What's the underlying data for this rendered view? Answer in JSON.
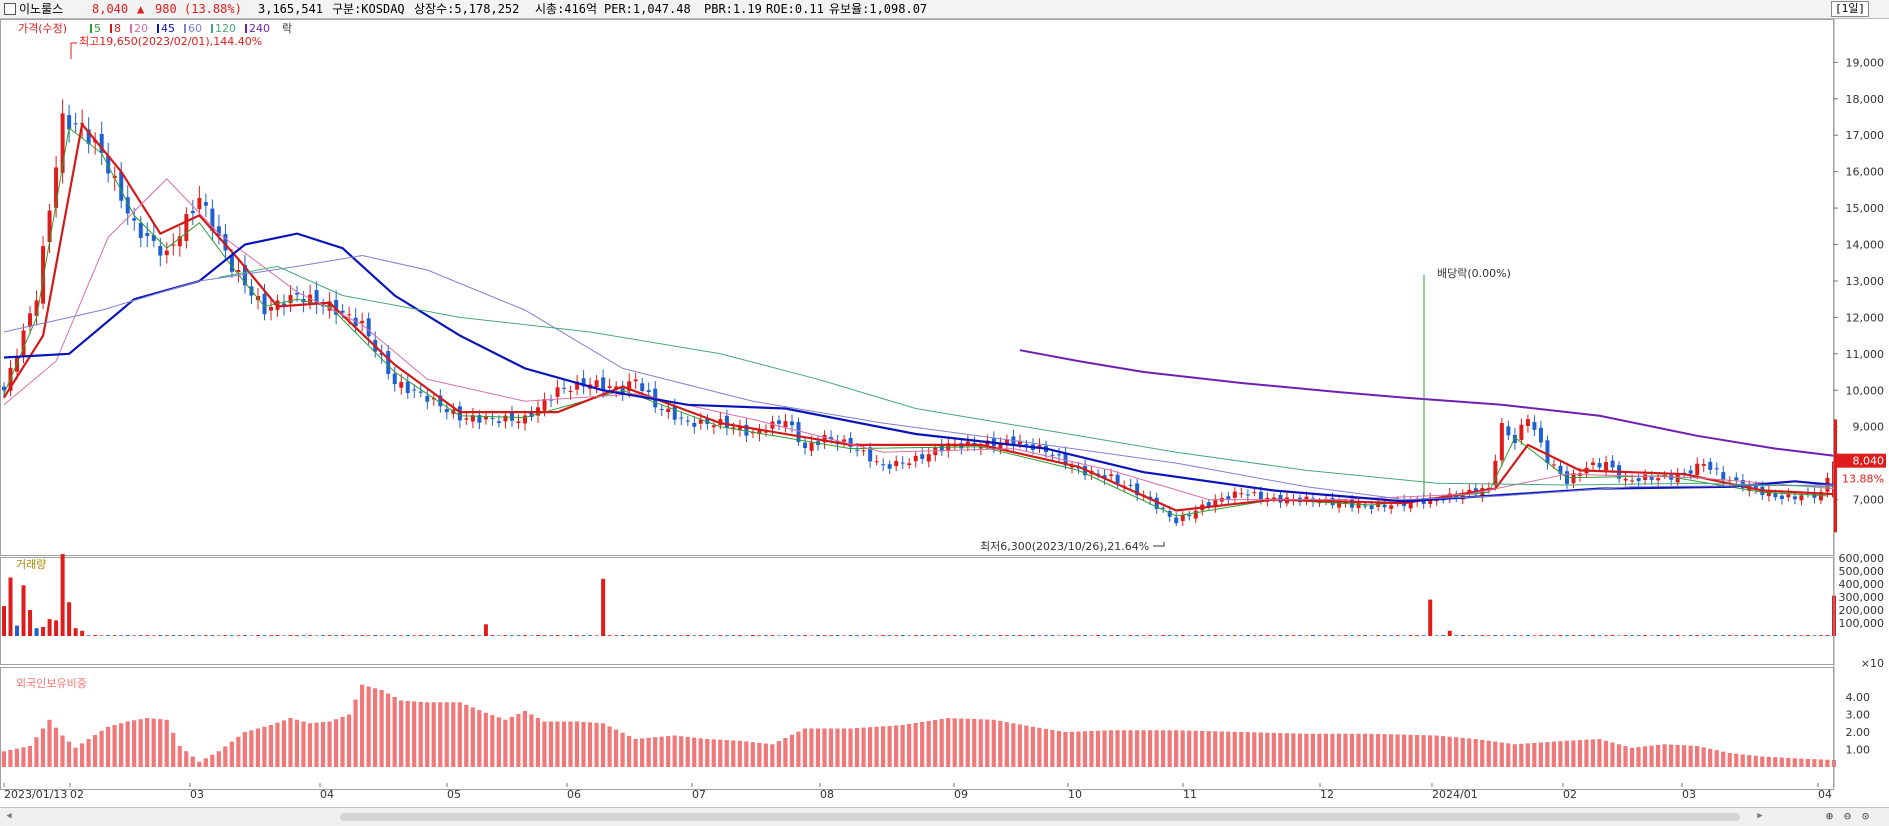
{
  "header": {
    "name": "이노룰스",
    "price": "8,040",
    "arrow": "▲",
    "change": "980",
    "change_pct": "(13.88%)",
    "volume": "3,165,541",
    "market": "구분:KOSDAQ",
    "shares": "상장수:5,178,252",
    "mktcap": "시총:416억",
    "per": "PER:1,047.48",
    "pbr": "PBR:1.19",
    "roe": "ROE:0.11",
    "retention": "유보율:1,098.07",
    "period": "[1일]"
  },
  "colors": {
    "up": "#e01b1b",
    "down": "#1f5fd1",
    "ma5": "#2e9e2e",
    "ma8": "#d11a1a",
    "ma20": "#d870a8",
    "ma45": "#0a14b8",
    "ma60": "#8080d0",
    "ma120": "#48a878",
    "ma240": "#7020b0",
    "foreign": "#f07878"
  },
  "legend": {
    "price_label": "가격(수정)",
    "ma_labels": [
      "5",
      "8",
      "20",
      "45",
      "60",
      "120",
      "240"
    ],
    "ex_label": "락",
    "volume_label": "거래량",
    "foreign_label": "외국인보유비중"
  },
  "chart_data": [
    {
      "type": "candlestick",
      "title": "가격(수정)",
      "ylim": [
        6100,
        20000
      ],
      "y_ticks": [
        "7,000",
        "8,000",
        "9,000",
        "10,000",
        "11,000",
        "12,000",
        "13,000",
        "14,000",
        "15,000",
        "16,000",
        "17,000",
        "18,000",
        "19,000"
      ],
      "x_ticks": [
        "2023/01/13",
        "02",
        "03",
        "04",
        "05",
        "06",
        "07",
        "08",
        "09",
        "10",
        "11",
        "12",
        "2024/01",
        "02",
        "03",
        "04"
      ],
      "last_price": "8,040",
      "last_change_pct": "13.88%",
      "annotations": {
        "high": "최고19,650(2023/02/01),144.40%",
        "low": "최저6,300(2023/10/26),21.64%",
        "ex_dividend": "배당락(0.00%)"
      },
      "price_path": [
        [
          0,
          10000
        ],
        [
          5,
          12600
        ],
        [
          9,
          17400
        ],
        [
          12,
          17200
        ],
        [
          15,
          16500
        ],
        [
          20,
          14500
        ],
        [
          25,
          13700
        ],
        [
          30,
          15300
        ],
        [
          35,
          13400
        ],
        [
          40,
          12200
        ],
        [
          45,
          12600
        ],
        [
          50,
          12300
        ],
        [
          55,
          11800
        ],
        [
          60,
          10200
        ],
        [
          65,
          9800
        ],
        [
          70,
          9250
        ],
        [
          75,
          9200
        ],
        [
          80,
          9200
        ],
        [
          85,
          10000
        ],
        [
          90,
          10200
        ],
        [
          95,
          10000
        ],
        [
          97,
          10300
        ],
        [
          100,
          9600
        ],
        [
          105,
          9100
        ],
        [
          110,
          9100
        ],
        [
          115,
          8800
        ],
        [
          120,
          9200
        ],
        [
          123,
          8400
        ],
        [
          126,
          8700
        ],
        [
          130,
          8500
        ],
        [
          135,
          7900
        ],
        [
          140,
          8100
        ],
        [
          145,
          8500
        ],
        [
          150,
          8500
        ],
        [
          155,
          8600
        ],
        [
          160,
          8350
        ],
        [
          165,
          7800
        ],
        [
          170,
          7600
        ],
        [
          175,
          7100
        ],
        [
          180,
          6400
        ],
        [
          185,
          6900
        ],
        [
          190,
          7200
        ],
        [
          195,
          7000
        ],
        [
          200,
          7000
        ],
        [
          205,
          6900
        ],
        [
          210,
          6800
        ],
        [
          215,
          6900
        ],
        [
          220,
          7000
        ],
        [
          225,
          7200
        ],
        [
          228,
          7300
        ],
        [
          230,
          9000
        ],
        [
          232,
          8600
        ],
        [
          234,
          9300
        ],
        [
          237,
          8100
        ],
        [
          240,
          7500
        ],
        [
          243,
          7900
        ],
        [
          246,
          8000
        ],
        [
          249,
          7500
        ],
        [
          252,
          7600
        ],
        [
          255,
          7600
        ],
        [
          258,
          7700
        ],
        [
          261,
          8000
        ],
        [
          264,
          7600
        ],
        [
          267,
          7400
        ],
        [
          270,
          7200
        ],
        [
          273,
          7050
        ],
        [
          276,
          7100
        ],
        [
          279,
          7150
        ],
        [
          281,
          8040
        ]
      ],
      "ma_paths": {
        "ma5": [
          [
            0,
            9900
          ],
          [
            5,
            12000
          ],
          [
            10,
            17200
          ],
          [
            15,
            16500
          ],
          [
            20,
            14800
          ],
          [
            25,
            13900
          ],
          [
            30,
            14600
          ],
          [
            35,
            13400
          ],
          [
            40,
            12300
          ],
          [
            45,
            12500
          ],
          [
            50,
            12300
          ],
          [
            60,
            10500
          ],
          [
            70,
            9300
          ],
          [
            80,
            9250
          ],
          [
            95,
            10000
          ],
          [
            110,
            9000
          ],
          [
            130,
            8400
          ],
          [
            150,
            8450
          ],
          [
            165,
            7800
          ],
          [
            180,
            6550
          ],
          [
            195,
            7000
          ],
          [
            210,
            6850
          ],
          [
            228,
            7200
          ],
          [
            232,
            8700
          ],
          [
            240,
            7600
          ],
          [
            255,
            7650
          ],
          [
            270,
            7200
          ],
          [
            280,
            7100
          ]
        ],
        "ma8": [
          [
            0,
            9800
          ],
          [
            6,
            11500
          ],
          [
            12,
            17300
          ],
          [
            18,
            16000
          ],
          [
            24,
            14300
          ],
          [
            30,
            14800
          ],
          [
            36,
            13600
          ],
          [
            42,
            12300
          ],
          [
            50,
            12400
          ],
          [
            60,
            10700
          ],
          [
            70,
            9400
          ],
          [
            85,
            9400
          ],
          [
            95,
            10100
          ],
          [
            110,
            9100
          ],
          [
            130,
            8500
          ],
          [
            150,
            8500
          ],
          [
            165,
            7900
          ],
          [
            180,
            6700
          ],
          [
            195,
            7000
          ],
          [
            215,
            6900
          ],
          [
            229,
            7300
          ],
          [
            234,
            8500
          ],
          [
            242,
            7800
          ],
          [
            258,
            7700
          ],
          [
            270,
            7250
          ],
          [
            281,
            7150
          ]
        ],
        "ma20": [
          [
            0,
            9600
          ],
          [
            8,
            10800
          ],
          [
            16,
            14200
          ],
          [
            25,
            15800
          ],
          [
            33,
            14300
          ],
          [
            45,
            12700
          ],
          [
            55,
            11800
          ],
          [
            65,
            10300
          ],
          [
            80,
            9700
          ],
          [
            97,
            9900
          ],
          [
            115,
            9200
          ],
          [
            135,
            8300
          ],
          [
            155,
            8400
          ],
          [
            170,
            7800
          ],
          [
            185,
            7000
          ],
          [
            205,
            7000
          ],
          [
            225,
            7150
          ],
          [
            240,
            7700
          ],
          [
            260,
            7600
          ],
          [
            281,
            7300
          ]
        ],
        "ma45": [
          [
            0,
            10900
          ],
          [
            10,
            11000
          ],
          [
            20,
            12500
          ],
          [
            30,
            13000
          ],
          [
            37,
            14000
          ],
          [
            45,
            14300
          ],
          [
            52,
            13900
          ],
          [
            60,
            12600
          ],
          [
            70,
            11500
          ],
          [
            80,
            10600
          ],
          [
            92,
            10000
          ],
          [
            105,
            9600
          ],
          [
            120,
            9500
          ],
          [
            140,
            8800
          ],
          [
            160,
            8400
          ],
          [
            175,
            7750
          ],
          [
            195,
            7250
          ],
          [
            215,
            6950
          ],
          [
            228,
            7100
          ],
          [
            245,
            7300
          ],
          [
            265,
            7350
          ],
          [
            275,
            7500
          ],
          [
            281,
            7400
          ]
        ],
        "ma60": [
          [
            0,
            11600
          ],
          [
            15,
            12200
          ],
          [
            30,
            13000
          ],
          [
            45,
            13400
          ],
          [
            55,
            13700
          ],
          [
            65,
            13300
          ],
          [
            80,
            12200
          ],
          [
            95,
            10600
          ],
          [
            115,
            9700
          ],
          [
            135,
            9100
          ],
          [
            160,
            8500
          ],
          [
            180,
            8000
          ],
          [
            200,
            7350
          ],
          [
            215,
            7000
          ],
          [
            230,
            7100
          ],
          [
            250,
            7350
          ],
          [
            281,
            7400
          ]
        ],
        "ma120": [
          [
            33,
            13100
          ],
          [
            42,
            13400
          ],
          [
            52,
            12600
          ],
          [
            70,
            12000
          ],
          [
            90,
            11600
          ],
          [
            110,
            11000
          ],
          [
            125,
            10300
          ],
          [
            140,
            9500
          ],
          [
            160,
            8900
          ],
          [
            180,
            8300
          ],
          [
            200,
            7800
          ],
          [
            220,
            7450
          ],
          [
            240,
            7400
          ],
          [
            260,
            7450
          ],
          [
            281,
            7350
          ]
        ],
        "ma240": [
          [
            156,
            11100
          ],
          [
            165,
            10800
          ],
          [
            175,
            10500
          ],
          [
            190,
            10200
          ],
          [
            205,
            9950
          ],
          [
            215,
            9800
          ],
          [
            230,
            9600
          ],
          [
            245,
            9300
          ],
          [
            260,
            8750
          ],
          [
            272,
            8400
          ],
          [
            281,
            8200
          ]
        ]
      }
    },
    {
      "type": "bar",
      "title": "거래량",
      "ylim": [
        0,
        700
      ],
      "y_ticks": [
        "100,000",
        "200,000",
        "300,000",
        "400,000",
        "500,000",
        "600,000"
      ],
      "unit": "×10",
      "spikes": [
        [
          0,
          230
        ],
        [
          1,
          450
        ],
        [
          2,
          80
        ],
        [
          3,
          390
        ],
        [
          4,
          200
        ],
        [
          5,
          60
        ],
        [
          6,
          70
        ],
        [
          7,
          130
        ],
        [
          8,
          120
        ],
        [
          9,
          630
        ],
        [
          10,
          260
        ],
        [
          11,
          60
        ],
        [
          12,
          40
        ],
        [
          74,
          90
        ],
        [
          92,
          440
        ],
        [
          219,
          280
        ],
        [
          222,
          40
        ],
        [
          281,
          310
        ]
      ]
    },
    {
      "type": "bar",
      "title": "외국인보유비중",
      "ylim": [
        0,
        5
      ],
      "y_ticks": [
        "1.00",
        "2.00",
        "3.00",
        "4.00"
      ],
      "path": [
        [
          0,
          0.9
        ],
        [
          4,
          1.2
        ],
        [
          7,
          2.7
        ],
        [
          9,
          1.8
        ],
        [
          11,
          1.1
        ],
        [
          13,
          1.6
        ],
        [
          16,
          2.3
        ],
        [
          19,
          2.6
        ],
        [
          22,
          2.8
        ],
        [
          25,
          2.7
        ],
        [
          27,
          1.2
        ],
        [
          30,
          0.3
        ],
        [
          33,
          0.9
        ],
        [
          37,
          2.0
        ],
        [
          41,
          2.4
        ],
        [
          44,
          2.8
        ],
        [
          47,
          2.5
        ],
        [
          50,
          2.6
        ],
        [
          53,
          3.0
        ],
        [
          55,
          4.7
        ],
        [
          58,
          4.4
        ],
        [
          61,
          3.8
        ],
        [
          65,
          3.7
        ],
        [
          70,
          3.7
        ],
        [
          74,
          3.1
        ],
        [
          77,
          2.7
        ],
        [
          80,
          3.2
        ],
        [
          83,
          2.6
        ],
        [
          88,
          2.6
        ],
        [
          92,
          2.5
        ],
        [
          97,
          1.6
        ],
        [
          103,
          1.8
        ],
        [
          108,
          1.6
        ],
        [
          113,
          1.5
        ],
        [
          118,
          1.3
        ],
        [
          123,
          2.2
        ],
        [
          130,
          2.2
        ],
        [
          138,
          2.4
        ],
        [
          145,
          2.8
        ],
        [
          152,
          2.7
        ],
        [
          158,
          2.3
        ],
        [
          163,
          2.0
        ],
        [
          170,
          2.1
        ],
        [
          180,
          2.1
        ],
        [
          190,
          2.0
        ],
        [
          200,
          1.9
        ],
        [
          210,
          1.9
        ],
        [
          220,
          1.8
        ],
        [
          226,
          1.6
        ],
        [
          232,
          1.3
        ],
        [
          240,
          1.5
        ],
        [
          245,
          1.6
        ],
        [
          250,
          1.1
        ],
        [
          255,
          1.3
        ],
        [
          260,
          1.2
        ],
        [
          265,
          0.8
        ],
        [
          270,
          0.6
        ],
        [
          275,
          0.5
        ],
        [
          281,
          0.4
        ]
      ]
    }
  ]
}
